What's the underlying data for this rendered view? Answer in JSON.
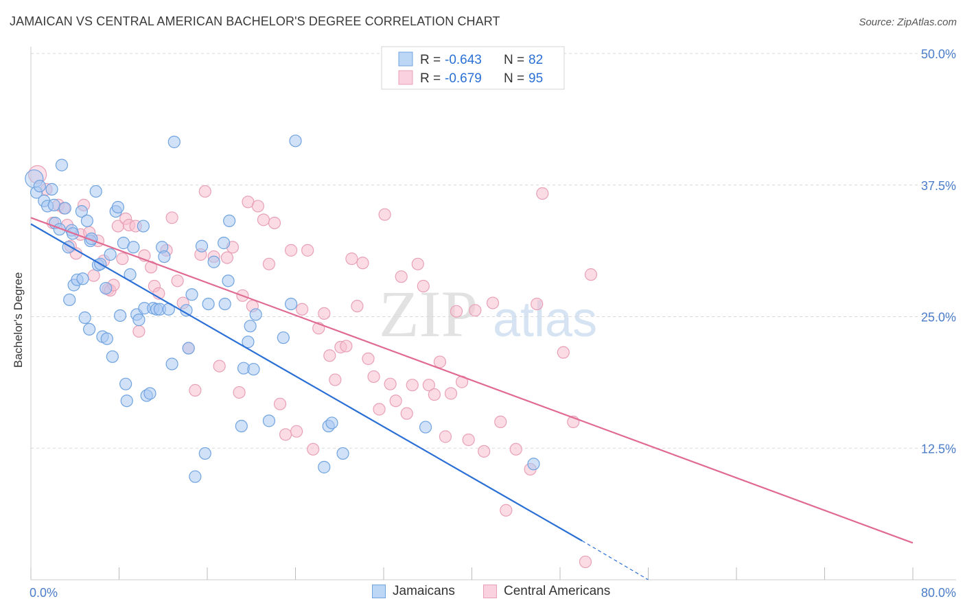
{
  "title": "JAMAICAN VS CENTRAL AMERICAN BACHELOR'S DEGREE CORRELATION CHART",
  "source": "Source: ZipAtlas.com",
  "watermark": {
    "zip": "ZIP",
    "atlas": "atlas"
  },
  "colors": {
    "blue_fill": "#a9c9f3",
    "blue_stroke": "#6fa3e0",
    "blue_line": "#2a6fd6",
    "pink_fill": "#f8bfd0",
    "pink_stroke": "#e8a0b6",
    "pink_line": "#e06a92",
    "axis_text": "#4a7cc9",
    "grid": "#d8d8d8"
  },
  "legend": {
    "rows": [
      {
        "r_label": "R = ",
        "r_value": "-0.643",
        "n_label": "N = ",
        "n_value": "82"
      },
      {
        "r_label": "R = ",
        "r_value": "-0.679",
        "n_label": "N = ",
        "n_value": "95"
      }
    ]
  },
  "bottom_legend": [
    {
      "label": "Jamaicans"
    },
    {
      "label": "Central Americans"
    }
  ],
  "chart_data": {
    "type": "scatter",
    "title": "JAMAICAN VS CENTRAL AMERICAN BACHELOR'S DEGREE CORRELATION CHART",
    "xlabel": "",
    "ylabel": "Bachelor's Degree",
    "xlim": [
      0,
      80
    ],
    "ylim": [
      0,
      50
    ],
    "x_tick_labels": [
      "0.0%",
      "80.0%"
    ],
    "y_ticks": [
      12.5,
      25.0,
      37.5,
      50.0
    ],
    "y_tick_labels": [
      "12.5%",
      "25.0%",
      "37.5%",
      "50.0%"
    ],
    "series": [
      {
        "name": "Jamaicans",
        "R": -0.643,
        "N": 82,
        "trend": {
          "x0": 0,
          "y0": 33.8,
          "x1": 50,
          "y1": 3.7,
          "dash_to_x": 56,
          "dash_to_y": 0
        },
        "points": [
          [
            0.3,
            38.1
          ],
          [
            0.5,
            36.8
          ],
          [
            0.8,
            37.4
          ],
          [
            1.2,
            36.0
          ],
          [
            1.5,
            35.5
          ],
          [
            1.9,
            37.1
          ],
          [
            2.1,
            35.6
          ],
          [
            2.2,
            33.9
          ],
          [
            2.6,
            33.3
          ],
          [
            2.8,
            39.4
          ],
          [
            3.1,
            35.3
          ],
          [
            3.4,
            31.6
          ],
          [
            3.5,
            26.6
          ],
          [
            3.7,
            33.2
          ],
          [
            3.8,
            32.9
          ],
          [
            3.9,
            28.0
          ],
          [
            4.2,
            28.5
          ],
          [
            4.6,
            35.0
          ],
          [
            4.7,
            28.6
          ],
          [
            4.9,
            24.9
          ],
          [
            5.1,
            34.1
          ],
          [
            5.3,
            23.8
          ],
          [
            5.4,
            32.2
          ],
          [
            5.5,
            32.4
          ],
          [
            5.9,
            36.9
          ],
          [
            6.1,
            29.9
          ],
          [
            6.3,
            30.0
          ],
          [
            6.5,
            23.1
          ],
          [
            6.8,
            27.7
          ],
          [
            6.9,
            22.9
          ],
          [
            7.2,
            30.9
          ],
          [
            7.4,
            21.2
          ],
          [
            7.7,
            35.0
          ],
          [
            7.9,
            35.4
          ],
          [
            8.1,
            25.1
          ],
          [
            8.4,
            32.0
          ],
          [
            8.6,
            18.6
          ],
          [
            8.7,
            17.0
          ],
          [
            9.0,
            29.0
          ],
          [
            9.3,
            31.6
          ],
          [
            9.6,
            25.2
          ],
          [
            9.8,
            24.7
          ],
          [
            10.2,
            33.6
          ],
          [
            10.3,
            25.8
          ],
          [
            10.5,
            17.5
          ],
          [
            10.8,
            17.7
          ],
          [
            11.1,
            25.8
          ],
          [
            11.4,
            25.7
          ],
          [
            11.7,
            25.7
          ],
          [
            11.9,
            31.6
          ],
          [
            12.1,
            30.7
          ],
          [
            12.5,
            25.7
          ],
          [
            12.8,
            20.5
          ],
          [
            13.0,
            41.6
          ],
          [
            14.1,
            25.6
          ],
          [
            14.3,
            22.0
          ],
          [
            14.6,
            27.1
          ],
          [
            14.9,
            9.8
          ],
          [
            15.5,
            31.7
          ],
          [
            15.8,
            12.0
          ],
          [
            16.1,
            26.2
          ],
          [
            16.6,
            30.2
          ],
          [
            17.5,
            32.0
          ],
          [
            17.6,
            26.2
          ],
          [
            17.9,
            28.4
          ],
          [
            18.0,
            34.1
          ],
          [
            19.1,
            14.6
          ],
          [
            19.3,
            20.1
          ],
          [
            19.7,
            22.6
          ],
          [
            19.9,
            24.1
          ],
          [
            20.2,
            20.0
          ],
          [
            20.4,
            25.2
          ],
          [
            21.6,
            15.1
          ],
          [
            22.9,
            23.0
          ],
          [
            23.6,
            26.2
          ],
          [
            24.0,
            41.7
          ],
          [
            26.6,
            10.7
          ],
          [
            27.0,
            14.6
          ],
          [
            27.3,
            14.9
          ],
          [
            28.3,
            12.0
          ],
          [
            35.8,
            14.5
          ],
          [
            45.6,
            11.0
          ]
        ]
      },
      {
        "name": "Central Americans",
        "R": -0.679,
        "N": 95,
        "trend": {
          "x0": 0,
          "y0": 34.4,
          "x1": 80,
          "y1": 3.5
        },
        "points": [
          [
            0.6,
            38.5
          ],
          [
            1.4,
            37.1
          ],
          [
            2.0,
            33.9
          ],
          [
            2.5,
            35.6
          ],
          [
            3.0,
            35.3
          ],
          [
            3.3,
            33.7
          ],
          [
            3.6,
            31.7
          ],
          [
            4.1,
            31.0
          ],
          [
            4.5,
            32.8
          ],
          [
            4.8,
            35.6
          ],
          [
            5.3,
            33.0
          ],
          [
            5.7,
            28.9
          ],
          [
            6.1,
            32.2
          ],
          [
            6.6,
            30.3
          ],
          [
            7.0,
            27.6
          ],
          [
            7.2,
            27.5
          ],
          [
            7.5,
            28.0
          ],
          [
            7.9,
            33.6
          ],
          [
            8.3,
            30.5
          ],
          [
            8.6,
            34.3
          ],
          [
            8.9,
            33.7
          ],
          [
            9.5,
            33.6
          ],
          [
            9.8,
            23.6
          ],
          [
            10.3,
            30.8
          ],
          [
            10.9,
            29.7
          ],
          [
            11.2,
            27.9
          ],
          [
            11.6,
            27.2
          ],
          [
            12.3,
            31.3
          ],
          [
            12.8,
            34.4
          ],
          [
            13.3,
            28.4
          ],
          [
            13.8,
            26.3
          ],
          [
            14.3,
            22.0
          ],
          [
            14.9,
            18.0
          ],
          [
            15.4,
            30.9
          ],
          [
            15.8,
            36.9
          ],
          [
            16.6,
            30.7
          ],
          [
            17.1,
            20.3
          ],
          [
            17.8,
            30.6
          ],
          [
            18.3,
            31.6
          ],
          [
            18.9,
            17.8
          ],
          [
            19.2,
            27.0
          ],
          [
            19.7,
            35.9
          ],
          [
            20.1,
            26.0
          ],
          [
            20.6,
            35.5
          ],
          [
            21.1,
            34.2
          ],
          [
            21.6,
            30.0
          ],
          [
            22.1,
            33.9
          ],
          [
            22.6,
            16.7
          ],
          [
            23.1,
            13.8
          ],
          [
            23.6,
            31.3
          ],
          [
            24.1,
            14.1
          ],
          [
            24.6,
            25.7
          ],
          [
            25.1,
            31.3
          ],
          [
            25.6,
            12.4
          ],
          [
            26.1,
            23.9
          ],
          [
            26.6,
            25.3
          ],
          [
            27.1,
            21.3
          ],
          [
            27.6,
            19.0
          ],
          [
            28.1,
            22.1
          ],
          [
            28.6,
            22.2
          ],
          [
            29.1,
            30.5
          ],
          [
            29.6,
            26.0
          ],
          [
            30.1,
            30.1
          ],
          [
            30.6,
            21.0
          ],
          [
            31.1,
            19.3
          ],
          [
            31.6,
            16.2
          ],
          [
            32.1,
            34.7
          ],
          [
            32.6,
            18.6
          ],
          [
            33.1,
            17.0
          ],
          [
            33.6,
            28.8
          ],
          [
            34.1,
            15.8
          ],
          [
            34.6,
            18.5
          ],
          [
            35.1,
            30.0
          ],
          [
            35.6,
            27.9
          ],
          [
            36.1,
            18.5
          ],
          [
            36.6,
            17.6
          ],
          [
            37.1,
            20.7
          ],
          [
            37.6,
            13.6
          ],
          [
            38.1,
            17.7
          ],
          [
            38.6,
            25.5
          ],
          [
            39.1,
            18.8
          ],
          [
            39.7,
            13.3
          ],
          [
            40.3,
            25.6
          ],
          [
            41.1,
            12.2
          ],
          [
            41.9,
            26.3
          ],
          [
            42.6,
            15.0
          ],
          [
            43.1,
            6.6
          ],
          [
            44.0,
            12.4
          ],
          [
            45.3,
            10.5
          ],
          [
            45.9,
            26.2
          ],
          [
            46.4,
            36.7
          ],
          [
            48.3,
            21.6
          ],
          [
            49.2,
            15.0
          ],
          [
            50.3,
            1.7
          ],
          [
            50.8,
            29.0
          ]
        ]
      }
    ]
  }
}
